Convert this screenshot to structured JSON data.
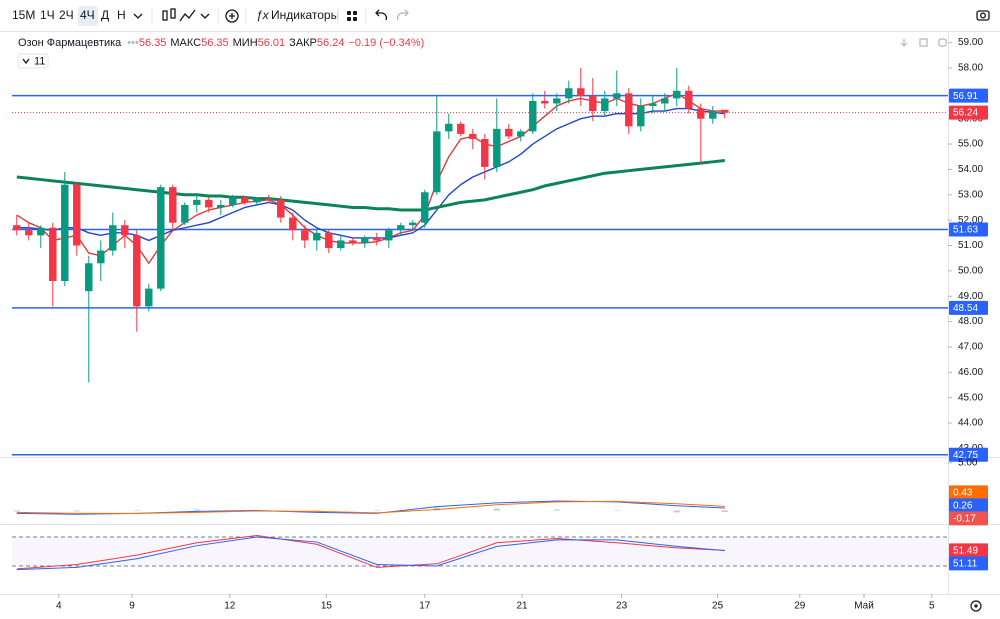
{
  "toolbar": {
    "intervals": [
      "15М",
      "1Ч",
      "2Ч",
      "4Ч",
      "Д",
      "Н"
    ],
    "indicators": "Индикаторы"
  },
  "legend": {
    "symbol": "Озон Фармацевтика",
    "high_label": "МАКС",
    "low_label": "МИН",
    "close_label": "ЗАКР",
    "change": "−0.19 (−0.34%)",
    "indicators_count": 11
  },
  "chart_data": [
    {
      "type": "candlestick",
      "open": [
        51.8,
        51.6,
        51.4,
        51.7,
        49.6,
        53.4,
        49.2,
        50.3,
        50.8,
        51.8,
        51.4,
        48.6,
        49.3,
        53.3,
        51.9,
        52.6,
        52.8,
        52.5,
        52.6,
        52.9,
        52.7,
        52.85,
        52.8,
        52.1,
        51.6,
        51.2,
        51.5,
        50.9,
        51.2,
        51.1,
        51.3,
        51.2,
        51.6,
        51.8,
        51.9,
        53.1,
        55.5,
        55.8,
        55.4,
        55.2,
        54.1,
        55.6,
        55.3,
        55.5,
        56.7,
        56.6,
        56.8,
        57.2,
        56.9,
        56.3,
        56.8,
        57.0,
        55.7,
        56.5,
        56.6,
        56.8,
        57.1,
        56.4,
        56.0,
        56.35
      ],
      "high": [
        52.2,
        51.9,
        51.8,
        51.9,
        53.9,
        53.5,
        50.6,
        51.2,
        52.3,
        52.0,
        51.6,
        49.5,
        53.4,
        53.4,
        52.7,
        53.0,
        52.9,
        52.8,
        53.0,
        52.95,
        52.9,
        53.0,
        52.95,
        52.3,
        51.8,
        51.6,
        51.6,
        51.4,
        51.3,
        51.4,
        51.5,
        51.7,
        51.9,
        52.0,
        53.2,
        56.9,
        56.2,
        55.9,
        55.6,
        55.4,
        56.8,
        55.8,
        55.6,
        57.0,
        57.1,
        57.0,
        57.5,
        58.0,
        57.6,
        57.1,
        57.9,
        57.2,
        56.8,
        56.9,
        57.0,
        58.0,
        57.3,
        56.6,
        56.5,
        56.35
      ],
      "low": [
        51.4,
        51.2,
        50.9,
        48.6,
        49.4,
        50.6,
        45.6,
        49.6,
        50.6,
        50.9,
        47.6,
        48.4,
        49.2,
        51.6,
        51.8,
        52.3,
        52.3,
        52.2,
        52.5,
        52.6,
        52.6,
        52.7,
        51.9,
        51.2,
        50.9,
        50.8,
        50.7,
        50.8,
        51.0,
        50.9,
        51.0,
        50.9,
        51.4,
        51.6,
        51.7,
        53.0,
        55.2,
        55.3,
        54.8,
        53.6,
        53.9,
        55.2,
        55.1,
        55.4,
        56.4,
        56.3,
        56.6,
        56.5,
        55.9,
        56.1,
        56.5,
        55.4,
        55.5,
        56.2,
        56.3,
        56.5,
        56.2,
        54.2,
        55.8,
        56.01
      ],
      "close": [
        51.6,
        51.4,
        51.7,
        49.6,
        53.4,
        51.0,
        50.3,
        50.8,
        51.8,
        51.4,
        48.6,
        49.3,
        53.3,
        51.9,
        52.6,
        52.8,
        52.5,
        52.6,
        52.9,
        52.7,
        52.85,
        52.8,
        52.1,
        51.6,
        51.2,
        51.5,
        50.9,
        51.2,
        51.1,
        51.3,
        51.2,
        51.6,
        51.8,
        51.9,
        53.1,
        55.5,
        55.8,
        55.4,
        55.2,
        54.1,
        55.6,
        55.3,
        55.5,
        56.7,
        56.6,
        56.8,
        57.2,
        56.9,
        56.3,
        56.8,
        57.0,
        55.7,
        56.5,
        56.6,
        56.8,
        57.1,
        56.4,
        56.0,
        56.3,
        56.24
      ],
      "up_color": "#089981",
      "down_color": "#f23645",
      "overlays": [
        {
          "color": "#e03a3e",
          "width": 1.4,
          "values": [
            52.2,
            51.9,
            51.7,
            51.2,
            51.3,
            51.4,
            50.7,
            50.6,
            51.0,
            51.4,
            51.0,
            50.3,
            51.0,
            51.6,
            51.9,
            52.2,
            52.4,
            52.5,
            52.6,
            52.7,
            52.75,
            52.8,
            52.6,
            52.2,
            51.7,
            51.4,
            51.2,
            51.1,
            51.1,
            51.1,
            51.15,
            51.3,
            51.5,
            51.6,
            52.2,
            53.5,
            54.5,
            55.2,
            55.3,
            55.0,
            54.9,
            55.1,
            55.3,
            55.7,
            56.1,
            56.5,
            56.7,
            56.8,
            56.7,
            56.6,
            56.8,
            56.6,
            56.5,
            56.6,
            56.8,
            57.0,
            56.7,
            56.4,
            56.3,
            56.3
          ]
        },
        {
          "color": "#1f47c8",
          "width": 1.4,
          "values": [
            51.7,
            51.7,
            51.65,
            51.6,
            51.7,
            51.7,
            51.5,
            51.4,
            51.5,
            51.5,
            51.4,
            51.2,
            51.4,
            51.6,
            51.7,
            51.8,
            51.9,
            52.1,
            52.3,
            52.5,
            52.6,
            52.7,
            52.6,
            52.4,
            52.0,
            51.7,
            51.5,
            51.4,
            51.3,
            51.3,
            51.3,
            51.3,
            51.4,
            51.5,
            51.8,
            52.4,
            53.0,
            53.4,
            53.7,
            53.9,
            54.1,
            54.3,
            54.6,
            55.0,
            55.3,
            55.6,
            55.8,
            56.0,
            56.1,
            56.1,
            56.2,
            56.2,
            56.2,
            56.3,
            56.3,
            56.4,
            56.4,
            56.3,
            56.25,
            56.2
          ]
        },
        {
          "color": "#0b8457",
          "width": 3,
          "values": [
            53.7,
            53.65,
            53.6,
            53.55,
            53.5,
            53.45,
            53.4,
            53.35,
            53.3,
            53.25,
            53.2,
            53.15,
            53.1,
            53.05,
            53.0,
            53.0,
            52.95,
            52.95,
            52.9,
            52.9,
            52.85,
            52.85,
            52.8,
            52.75,
            52.7,
            52.65,
            52.6,
            52.55,
            52.5,
            52.5,
            52.45,
            52.45,
            52.4,
            52.4,
            52.4,
            52.5,
            52.6,
            52.7,
            52.75,
            52.8,
            52.9,
            53.0,
            53.1,
            53.2,
            53.35,
            53.45,
            53.55,
            53.65,
            53.75,
            53.85,
            53.9,
            53.95,
            54.0,
            54.05,
            54.1,
            54.15,
            54.2,
            54.25,
            54.3,
            54.35
          ]
        }
      ],
      "levels": [
        56.91,
        51.63,
        48.54,
        42.75
      ],
      "level_color": "#2962ff",
      "xlim": [
        -0.4,
        77.6
      ],
      "xticks": [
        {
          "value": 3.5,
          "label": "4"
        },
        {
          "value": 9.6,
          "label": "9"
        },
        {
          "value": 17.75,
          "label": "12"
        },
        {
          "value": 25.8,
          "label": "15"
        },
        {
          "value": 34,
          "label": "17"
        },
        {
          "value": 42.1,
          "label": "21"
        },
        {
          "value": 50.4,
          "label": "23"
        },
        {
          "value": 58.4,
          "label": "25"
        },
        {
          "value": 65.25,
          "label": "29"
        },
        {
          "value": 70.6,
          "label": "Май"
        },
        {
          "value": 76.25,
          "label": "5"
        }
      ],
      "ylim": [
        42.7,
        59.3
      ],
      "yticks": [
        {
          "value": 59,
          "label": "59.00"
        },
        {
          "value": 58,
          "label": "58.00"
        },
        {
          "value": 57,
          "label": "57.00"
        },
        {
          "value": 56,
          "label": "56.00"
        },
        {
          "value": 55,
          "label": "55.00"
        },
        {
          "value": 54,
          "label": "54.00"
        },
        {
          "value": 53,
          "label": "53.00"
        },
        {
          "value": 52,
          "label": "52.00"
        },
        {
          "value": 51,
          "label": "51.00"
        },
        {
          "value": 50,
          "label": "50.00"
        },
        {
          "value": 49,
          "label": "49.00"
        },
        {
          "value": 48,
          "label": "48.00"
        },
        {
          "value": 47,
          "label": "47.00"
        },
        {
          "value": 46,
          "label": "46.00"
        },
        {
          "value": 45,
          "label": "45.00"
        },
        {
          "value": 44,
          "label": "44.00"
        },
        {
          "value": 43,
          "label": "43.00"
        }
      ]
    },
    {
      "type": "macd",
      "x": [
        0,
        5,
        10,
        15,
        20,
        25,
        30,
        35,
        40,
        45,
        50,
        55,
        59
      ],
      "series": [
        {
          "color": "#2962ff",
          "values": [
            -0.3,
            -0.4,
            -0.3,
            -0.1,
            0.0,
            -0.2,
            -0.3,
            0.4,
            0.8,
            1.0,
            0.9,
            0.5,
            0.26
          ]
        },
        {
          "color": "#ff6d00",
          "values": [
            -0.2,
            -0.3,
            -0.3,
            -0.2,
            -0.05,
            -0.1,
            -0.25,
            0.1,
            0.6,
            0.9,
            0.95,
            0.7,
            0.43
          ]
        }
      ],
      "histogram": {
        "up_color": "#26a69a",
        "down_color": "#ef5350",
        "values": [
          -0.1,
          -0.1,
          0,
          0.1,
          0.05,
          -0.1,
          -0.05,
          0.3,
          0.2,
          0.1,
          -0.05,
          -0.2,
          -0.17
        ]
      },
      "ylim": [
        -1,
        5.3
      ],
      "yticks": [
        {
          "value": 5,
          "label": "5.00"
        }
      ]
    },
    {
      "type": "oscillator",
      "x": [
        0,
        5,
        10,
        15,
        20,
        25,
        30,
        35,
        40,
        45,
        50,
        55,
        59
      ],
      "series": [
        {
          "color": "#f23645",
          "values": [
            26,
            32,
            45,
            62,
            72,
            60,
            28,
            33,
            62,
            68,
            62,
            55,
            51.49
          ]
        },
        {
          "color": "#2962ff",
          "values": [
            25,
            28,
            40,
            58,
            70,
            63,
            32,
            30,
            57,
            66,
            66,
            57,
            51.11
          ]
        }
      ],
      "bands": [
        30,
        70
      ],
      "ylim": [
        21.7,
        82.4
      ]
    }
  ]
}
